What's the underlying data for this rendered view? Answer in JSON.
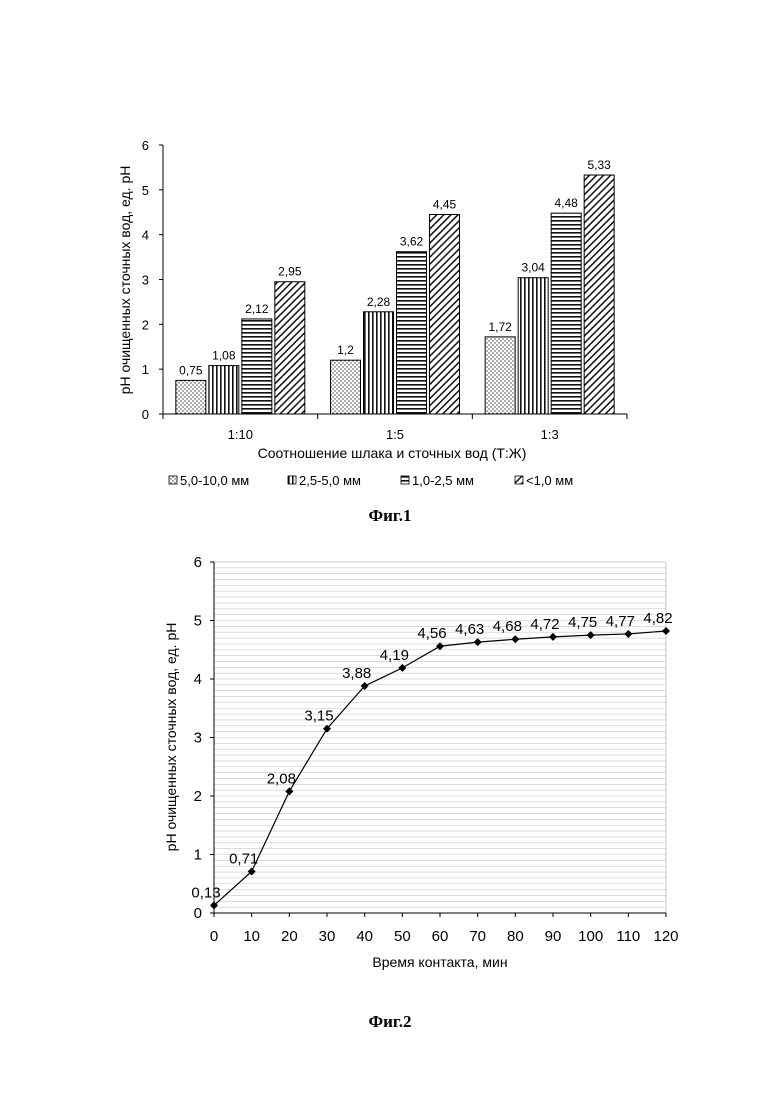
{
  "figures": [
    {
      "caption": "Фиг.1"
    },
    {
      "caption": "Фиг.2"
    }
  ],
  "chart_data": [
    {
      "type": "bar",
      "title": "",
      "xlabel": "Соотношение шлака и сточных вод (Т:Ж)",
      "ylabel": "pH очищенных сточных вод, ед. pH",
      "ylim": [
        0,
        6
      ],
      "yticks": [
        "0",
        "1",
        "2",
        "3",
        "4",
        "5",
        "6"
      ],
      "categories": [
        "1:10",
        "1:5",
        "1:3"
      ],
      "legend_position": "bottom",
      "series": [
        {
          "name": "5,0-10,0 мм",
          "pattern": "dots",
          "values": [
            0.75,
            1.2,
            1.72
          ],
          "labels": [
            "0,75",
            "1,2",
            "1,72"
          ]
        },
        {
          "name": "2,5-5,0 мм",
          "pattern": "vertical",
          "values": [
            1.08,
            2.28,
            3.04
          ],
          "labels": [
            "1,08",
            "2,28",
            "3,04"
          ]
        },
        {
          "name": "1,0-2,5 мм",
          "pattern": "horizontal",
          "values": [
            2.12,
            3.62,
            4.48
          ],
          "labels": [
            "2,12",
            "3,62",
            "4,48"
          ]
        },
        {
          "name": "<1,0 мм",
          "pattern": "diagonal",
          "values": [
            2.95,
            4.45,
            5.33
          ],
          "labels": [
            "2,95",
            "4,45",
            "5,33"
          ]
        }
      ]
    },
    {
      "type": "line",
      "title": "",
      "xlabel": "Время контакта, мин",
      "ylabel": "pH очищенных сточных вод, ед. pH",
      "xlim": [
        0,
        120
      ],
      "ylim": [
        0,
        6
      ],
      "xticks": [
        "0",
        "10",
        "20",
        "30",
        "40",
        "50",
        "60",
        "70",
        "80",
        "90",
        "100",
        "110",
        "120"
      ],
      "yticks": [
        "0",
        "1",
        "2",
        "3",
        "4",
        "5",
        "6"
      ],
      "grid": "horizontal",
      "series": [
        {
          "x": [
            0,
            10,
            20,
            30,
            40,
            50,
            60,
            70,
            80,
            90,
            100,
            110,
            120
          ],
          "values": [
            0.13,
            0.71,
            2.08,
            3.15,
            3.88,
            4.19,
            4.56,
            4.63,
            4.68,
            4.72,
            4.75,
            4.77,
            4.82
          ],
          "labels": [
            "0,13",
            "0,71",
            "2,08",
            "3,15",
            "3,88",
            "4,19",
            "4,56",
            "4,63",
            "4,68",
            "4,72",
            "4,75",
            "4,77",
            "4,82"
          ]
        }
      ]
    }
  ]
}
